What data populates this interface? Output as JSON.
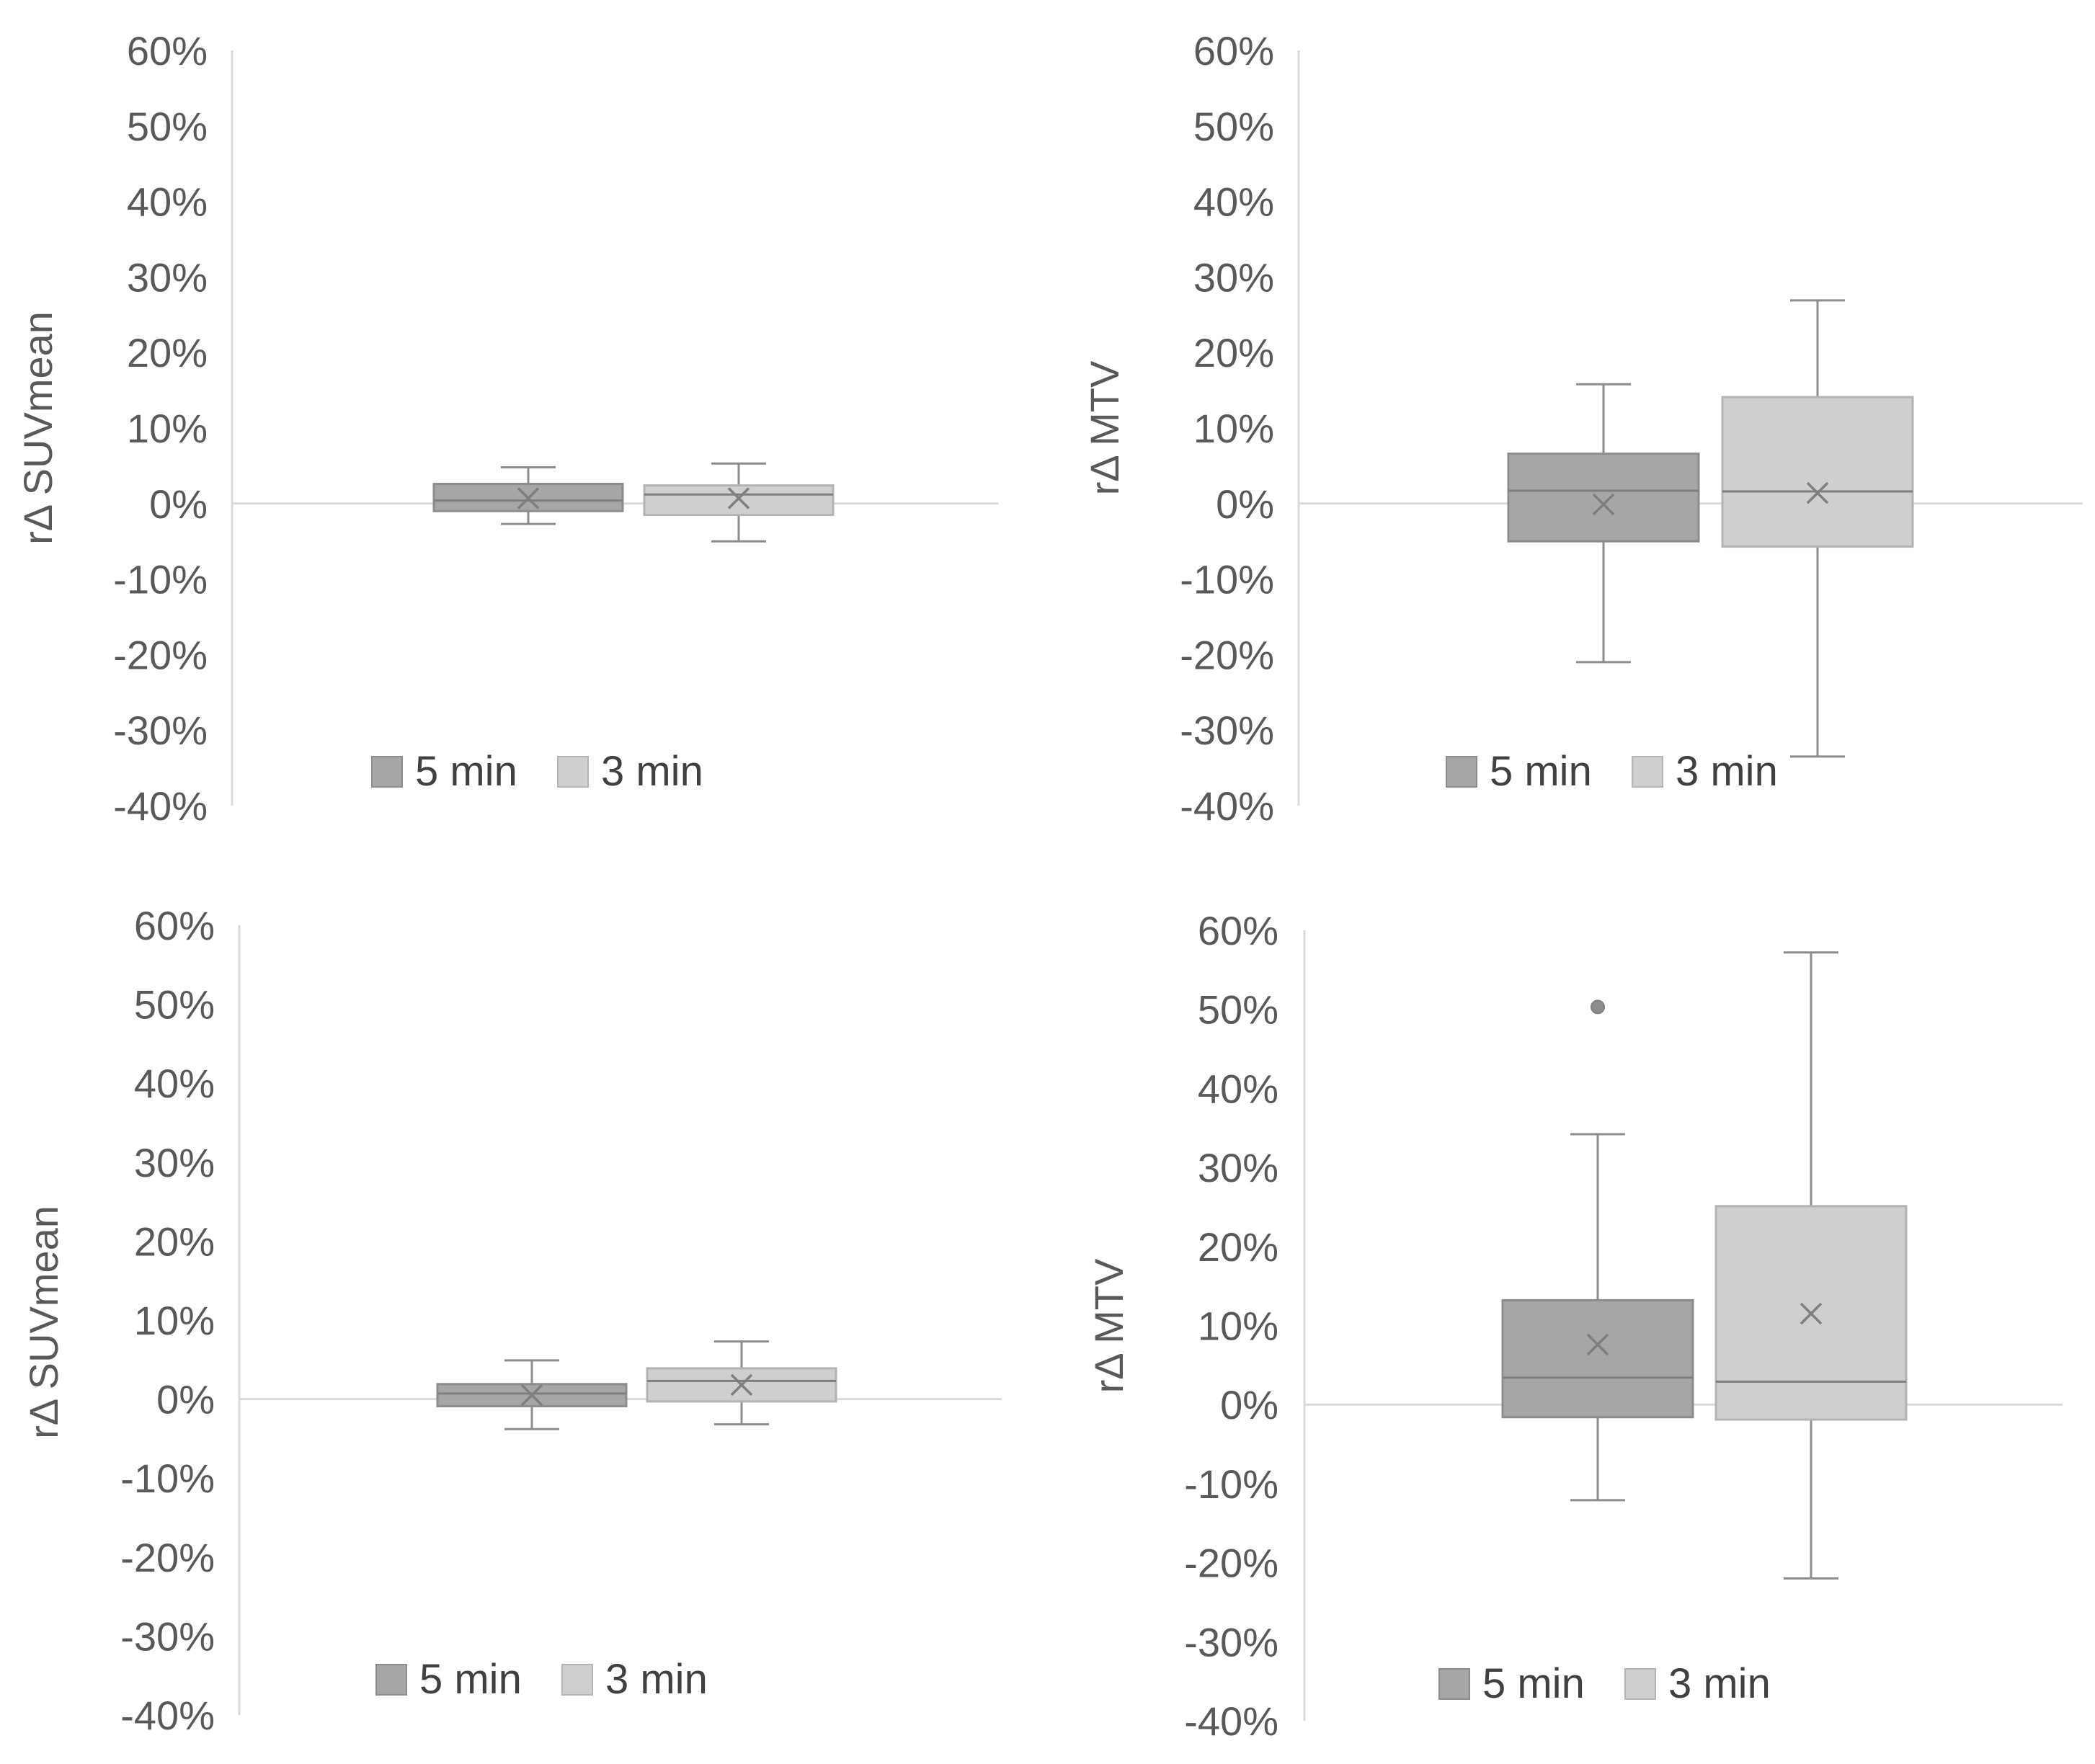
{
  "colors": {
    "series_5min": "#a6a6a6",
    "series_3min": "#cfcfcf",
    "box_stroke_5min": "#8c8c8c",
    "box_stroke_3min": "#b3b3b3",
    "whisker": "#8c8c8c",
    "axis": "#d9d9d9",
    "text": "#595959"
  },
  "chart_data": [
    {
      "type": "box",
      "ylabel": "rΔ SUVmean",
      "ylim": [
        -40,
        60
      ],
      "ytick_labels": [
        "60%",
        "50%",
        "40%",
        "30%",
        "20%",
        "10%",
        "0%",
        "-10%",
        "-20%",
        "-30%",
        "-40%"
      ],
      "ytick_values": [
        60,
        50,
        40,
        30,
        20,
        10,
        0,
        -10,
        -20,
        -30,
        -40
      ],
      "legend_position": "bottom",
      "series": [
        {
          "name": "5 min",
          "min": -2.7,
          "q1": -1.0,
          "median": 0.4,
          "q3": 2.6,
          "max": 4.8,
          "mean": 0.7,
          "outliers": []
        },
        {
          "name": "3 min",
          "min": -5.0,
          "q1": -1.5,
          "median": 1.2,
          "q3": 2.4,
          "max": 5.3,
          "mean": 0.7,
          "outliers": []
        }
      ]
    },
    {
      "type": "box",
      "ylabel": "rΔ MTV",
      "ylim": [
        -40,
        60
      ],
      "ytick_labels": [
        "60%",
        "50%",
        "40%",
        "30%",
        "20%",
        "10%",
        "0%",
        "-10%",
        "-20%",
        "-30%",
        "-40%"
      ],
      "ytick_values": [
        60,
        50,
        40,
        30,
        20,
        10,
        0,
        -10,
        -20,
        -30,
        -40
      ],
      "legend_position": "bottom",
      "series": [
        {
          "name": "5 min",
          "min": -21.0,
          "q1": -5.0,
          "median": 1.7,
          "q3": 6.6,
          "max": 15.8,
          "mean": -0.1,
          "outliers": []
        },
        {
          "name": "3 min",
          "min": -33.5,
          "q1": -5.7,
          "median": 1.6,
          "q3": 14.1,
          "max": 26.9,
          "mean": 1.4,
          "outliers": []
        }
      ]
    },
    {
      "type": "box",
      "ylabel": "rΔ SUVmean",
      "ylim": [
        -40,
        60
      ],
      "ytick_labels": [
        "60%",
        "50%",
        "40%",
        "30%",
        "20%",
        "10%",
        "0%",
        "-10%",
        "-20%",
        "-30%",
        "-40%"
      ],
      "ytick_values": [
        60,
        50,
        40,
        30,
        20,
        10,
        0,
        -10,
        -20,
        -30,
        -40
      ],
      "legend_position": "bottom",
      "series": [
        {
          "name": "5 min",
          "min": -3.8,
          "q1": -0.9,
          "median": 0.7,
          "q3": 1.9,
          "max": 4.9,
          "mean": 0.5,
          "outliers": []
        },
        {
          "name": "3 min",
          "min": -3.2,
          "q1": -0.3,
          "median": 2.3,
          "q3": 3.9,
          "max": 7.3,
          "mean": 1.8,
          "outliers": []
        }
      ]
    },
    {
      "type": "box",
      "ylabel": "rΔ MTV",
      "ylim": [
        -40,
        60
      ],
      "ytick_labels": [
        "60%",
        "50%",
        "40%",
        "30%",
        "20%",
        "10%",
        "0%",
        "-10%",
        "-20%",
        "-30%",
        "-40%"
      ],
      "ytick_values": [
        60,
        50,
        40,
        30,
        20,
        10,
        0,
        -10,
        -20,
        -30,
        -40
      ],
      "legend_position": "bottom",
      "series": [
        {
          "name": "5 min",
          "min": -12.1,
          "q1": -1.6,
          "median": 3.4,
          "q3": 13.2,
          "max": 34.2,
          "mean": 7.6,
          "outliers": [
            50.3
          ]
        },
        {
          "name": "3 min",
          "min": -22.0,
          "q1": -1.9,
          "median": 2.9,
          "q3": 25.1,
          "max": 57.2,
          "mean": 11.5,
          "outliers": []
        }
      ]
    }
  ]
}
